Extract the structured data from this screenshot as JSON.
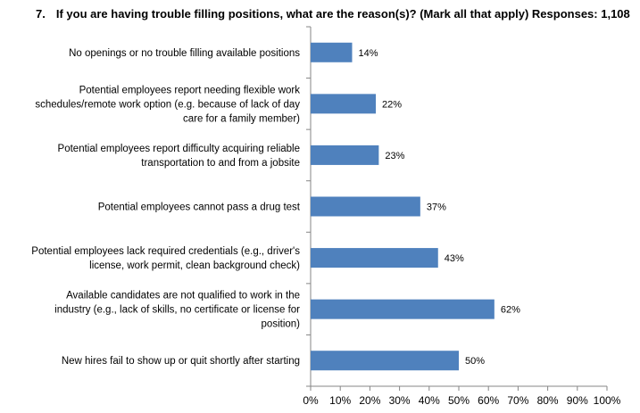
{
  "question": {
    "number": "7.",
    "text": "If you are having trouble filling positions, what are the reason(s)? (Mark all that apply) Responses: 1,108"
  },
  "colors": {
    "bar": "#4f81bd",
    "axis": "#868686"
  },
  "chart_data": {
    "type": "bar",
    "orientation": "horizontal",
    "categories": [
      [
        "No openings or no trouble filling available positions"
      ],
      [
        "Potential employees report needing flexible work",
        "schedules/remote work option (e.g. because of lack of day",
        "care for a family member)"
      ],
      [
        "Potential employees report difficulty acquiring reliable",
        "transportation to and from a jobsite"
      ],
      [
        "Potential employees cannot pass a drug test"
      ],
      [
        "Potential employees lack required credentials (e.g., driver's",
        "license, work permit, clean background check)"
      ],
      [
        "Available candidates are not qualified to work in the",
        "industry (e.g., lack of skills, no certificate or license for",
        "position)"
      ],
      [
        "New hires fail to show up or quit shortly after starting"
      ]
    ],
    "values": [
      14,
      22,
      23,
      37,
      43,
      62,
      50
    ],
    "value_labels": [
      "14%",
      "22%",
      "23%",
      "37%",
      "43%",
      "62%",
      "50%"
    ],
    "xlim": [
      0,
      100
    ],
    "xticks": [
      "0%",
      "10%",
      "20%",
      "30%",
      "40%",
      "50%",
      "60%",
      "70%",
      "80%",
      "90%",
      "100%"
    ],
    "grid": false,
    "legend": "none"
  }
}
